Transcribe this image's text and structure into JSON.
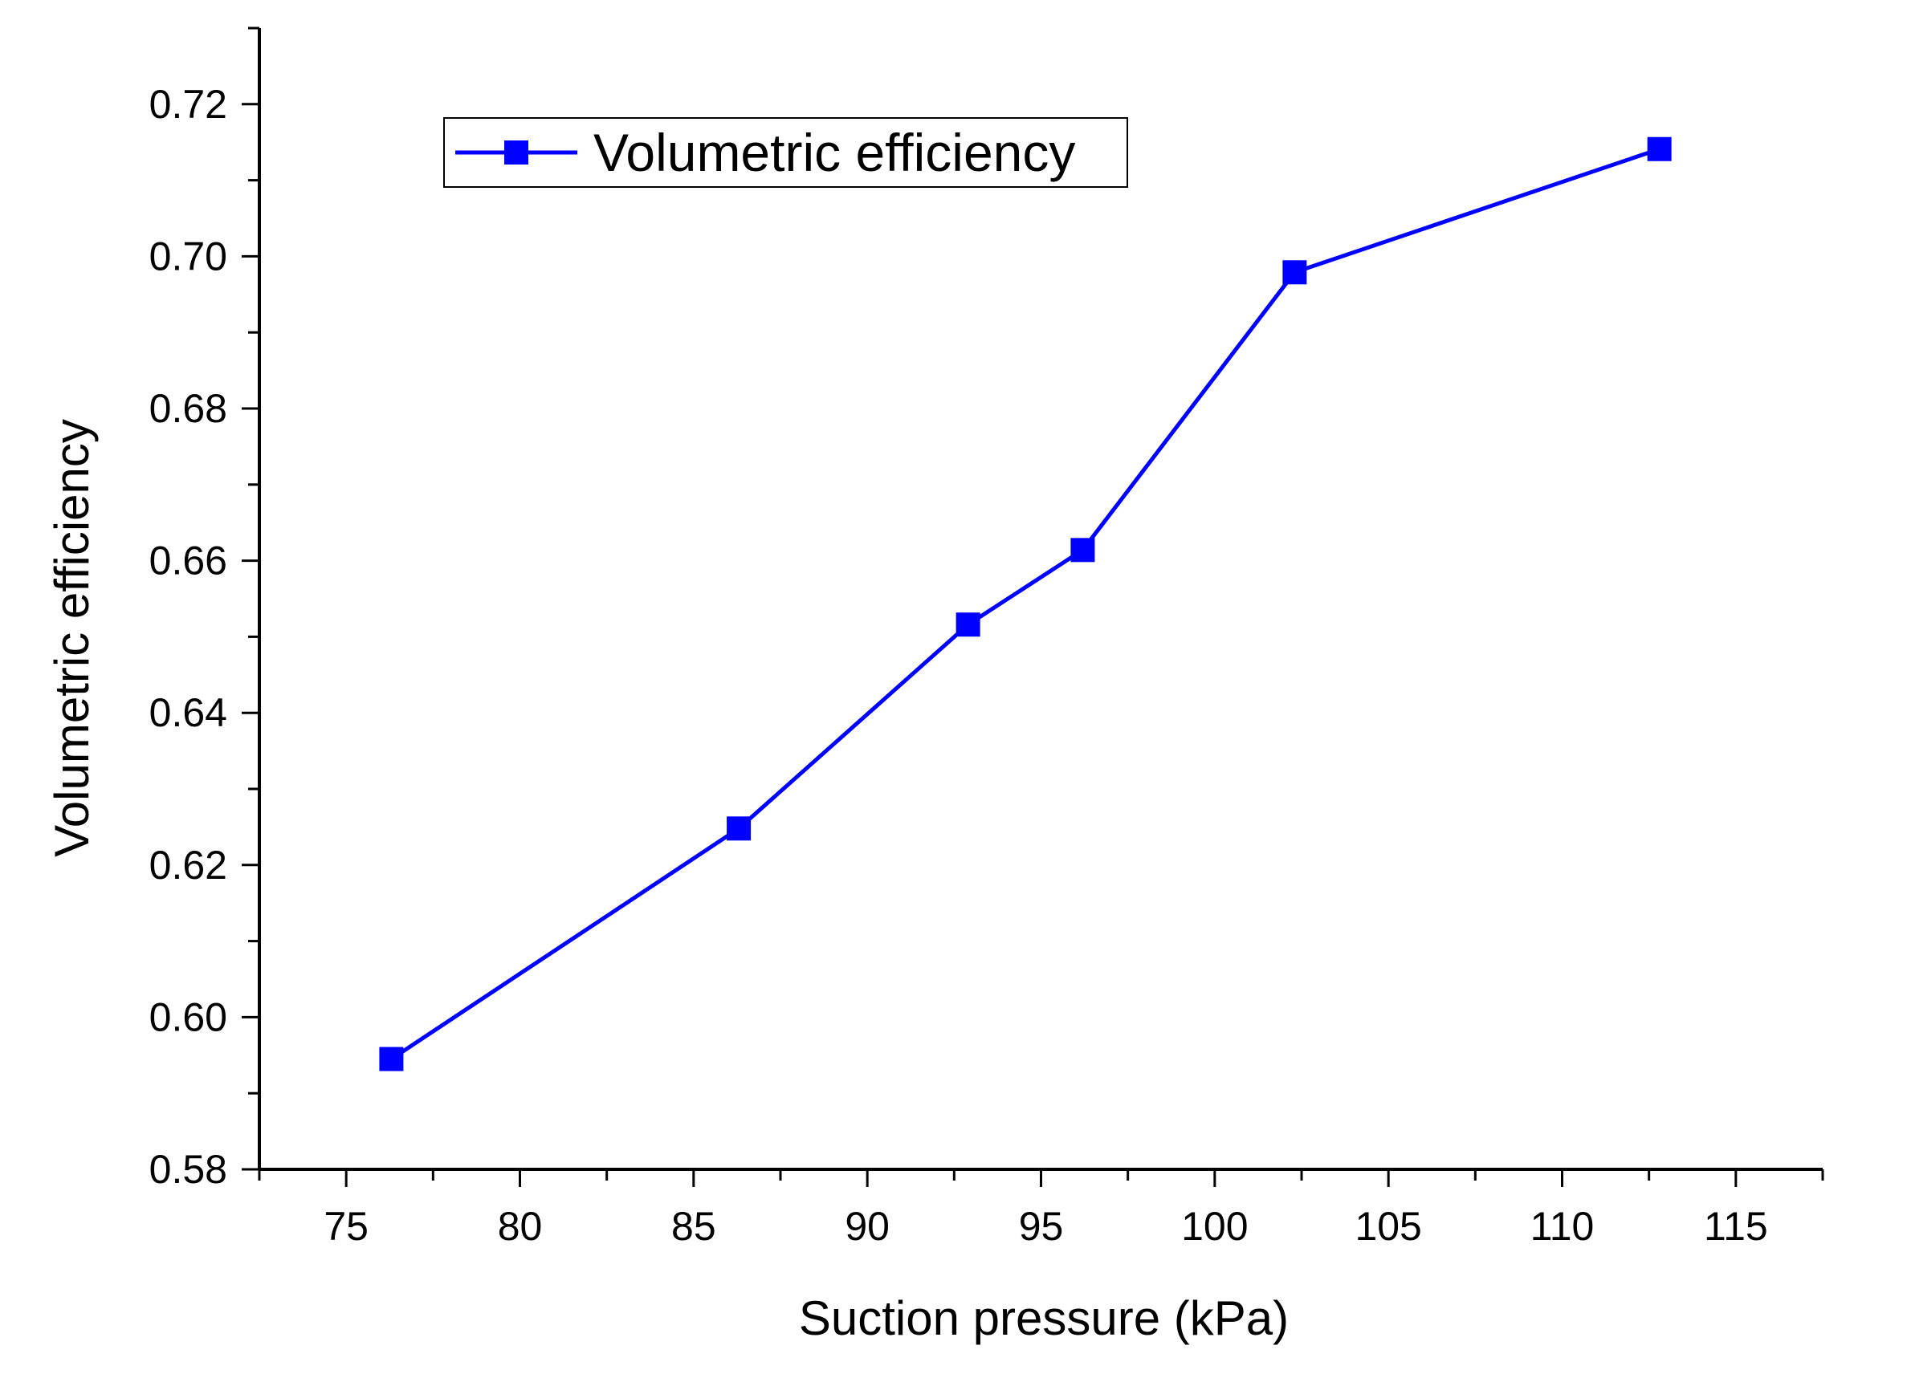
{
  "chart_data": {
    "type": "line",
    "title": "",
    "xlabel": "Suction pressure (kPa)",
    "ylabel": "Volumetric efficiency",
    "xlim": [
      72.5,
      117.5
    ],
    "ylim": [
      0.58,
      0.73
    ],
    "xticks": [
      75,
      80,
      85,
      90,
      95,
      100,
      105,
      110,
      115
    ],
    "xtick_labels": [
      "75",
      "80",
      "85",
      "90",
      "95",
      "100",
      "105",
      "110",
      "115"
    ],
    "yticks": [
      0.58,
      0.6,
      0.62,
      0.64,
      0.66,
      0.68,
      0.7,
      0.72
    ],
    "ytick_labels": [
      "0.58",
      "0.60",
      "0.62",
      "0.64",
      "0.66",
      "0.68",
      "0.70",
      "0.72"
    ],
    "grid": false,
    "legend_position": "top-left",
    "series": [
      {
        "name": "Volumetric efficiency",
        "color": "#0000ff",
        "marker": "square",
        "x": [
          76.3,
          86.3,
          92.9,
          96.2,
          102.3,
          112.8
        ],
        "y": [
          0.5945,
          0.6248,
          0.6516,
          0.6614,
          0.6979,
          0.7141
        ]
      }
    ]
  }
}
